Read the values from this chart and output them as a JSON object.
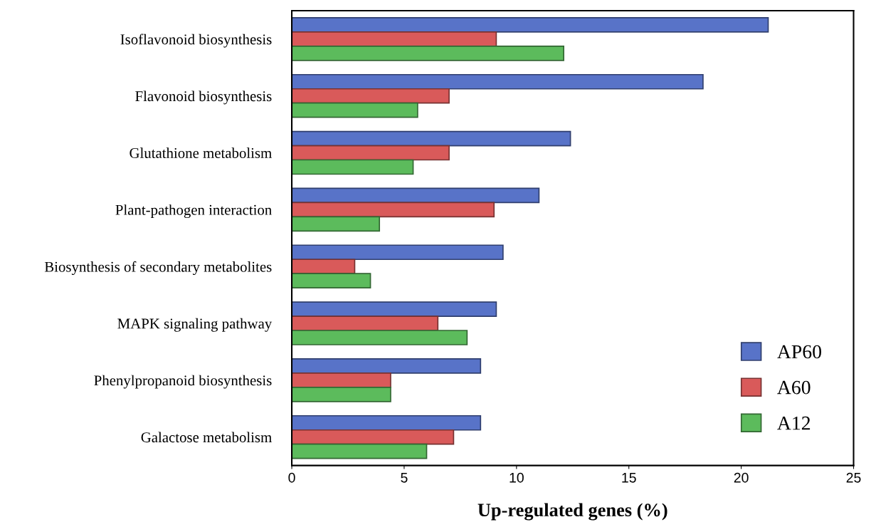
{
  "chart_data": {
    "type": "bar",
    "orientation": "horizontal",
    "xlabel": "Up-regulated genes (%)",
    "categories": [
      "Isoflavonoid biosynthesis",
      "Flavonoid biosynthesis",
      "Glutathione metabolism",
      "Plant-pathogen interaction",
      "Biosynthesis of secondary metabolites",
      "MAPK signaling pathway",
      "Phenylpropanoid biosynthesis",
      "Galactose metabolism"
    ],
    "series": [
      {
        "name": "AP60",
        "color": "#5873c8",
        "values": [
          21.2,
          18.3,
          12.4,
          11.0,
          9.4,
          9.1,
          8.4,
          8.4
        ]
      },
      {
        "name": "A60",
        "color": "#d95a5a",
        "values": [
          9.1,
          7.0,
          7.0,
          9.0,
          2.8,
          6.5,
          4.4,
          7.2
        ]
      },
      {
        "name": "A12",
        "color": "#5cbb5c",
        "values": [
          12.1,
          5.6,
          5.4,
          3.9,
          3.5,
          7.8,
          4.4,
          6.0
        ]
      }
    ],
    "xlim": [
      0,
      25
    ],
    "xticks": [
      0,
      5,
      10,
      15,
      20,
      25
    ],
    "grid": false,
    "legend": "bottom right"
  }
}
